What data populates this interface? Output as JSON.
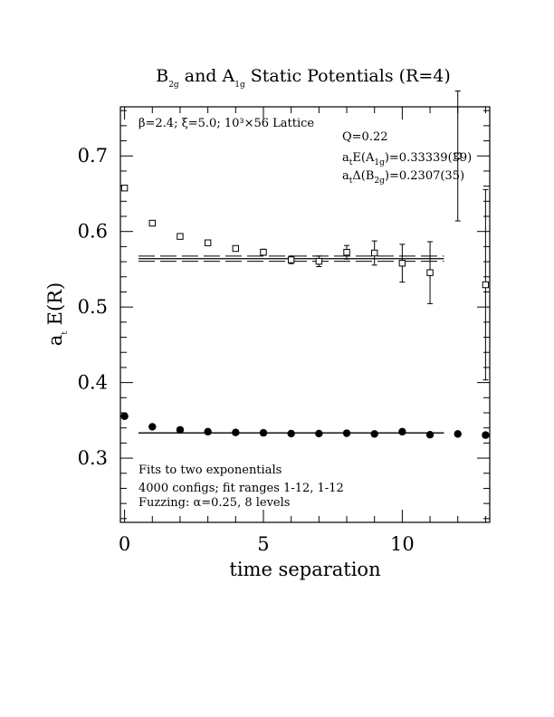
{
  "chart_data": {
    "type": "scatter",
    "title_main": "B",
    "title_sub1": "2g",
    "title_mid": " and A",
    "title_sub2": "1g",
    "title_end": " Static Potentials (R=4)",
    "xlabel": "time separation",
    "ylabel_main": "a",
    "ylabel_sub": "t",
    "ylabel_end": " E(R)",
    "xlim": [
      -0.15,
      13.15
    ],
    "ylim": [
      0.215,
      0.765
    ],
    "xticks": [
      0,
      5,
      10
    ],
    "yticks": [
      0.3,
      0.4,
      0.5,
      0.6,
      0.7
    ],
    "lattice_note": "β=2.4; ξ=5.0; 10³×56 Lattice",
    "q_note": "Q=0.22",
    "a1g_note_pre": "a",
    "a1g_note_sub": "t",
    "a1g_note_mid": "E(A",
    "a1g_note_sub2": "1g",
    "a1g_note_end": ")=0.33339(39)",
    "b2g_note_pre": "a",
    "b2g_note_sub": "t",
    "b2g_note_mid": "Δ(B",
    "b2g_note_sub2": "2g",
    "b2g_note_end": ")=0.2307(35)",
    "fit_note_1": "Fits to two exponentials",
    "fit_note_2": "4000 configs; fit ranges 1-12, 1-12",
    "fit_note_3": "Fuzzing: α=0.25, 8 levels",
    "series": [
      {
        "marker": "filled-circle",
        "points": [
          {
            "x": 0,
            "y": 0.3555,
            "err": 0
          },
          {
            "x": 1,
            "y": 0.3415,
            "err": 0
          },
          {
            "x": 2,
            "y": 0.3375,
            "err": 0
          },
          {
            "x": 3,
            "y": 0.335,
            "err": 0
          },
          {
            "x": 4,
            "y": 0.334,
            "err": 0
          },
          {
            "x": 5,
            "y": 0.3335,
            "err": 0
          },
          {
            "x": 6,
            "y": 0.3325,
            "err": 0
          },
          {
            "x": 7,
            "y": 0.3325,
            "err": 0
          },
          {
            "x": 8,
            "y": 0.333,
            "err": 0
          },
          {
            "x": 9,
            "y": 0.332,
            "err": 0
          },
          {
            "x": 10,
            "y": 0.335,
            "err": 0
          },
          {
            "x": 11,
            "y": 0.331,
            "err": 0
          },
          {
            "x": 12,
            "y": 0.332,
            "err": 0
          },
          {
            "x": 13,
            "y": 0.3305,
            "err": 0
          }
        ],
        "fit": {
          "y": 0.33339,
          "err": 0.00039,
          "x_range": [
            0.5,
            11.5
          ]
        }
      },
      {
        "marker": "open-square",
        "points": [
          {
            "x": 0,
            "y": 0.6575,
            "err": 0.002
          },
          {
            "x": 1,
            "y": 0.611,
            "err": 0.002
          },
          {
            "x": 2,
            "y": 0.5935,
            "err": 0.002
          },
          {
            "x": 3,
            "y": 0.585,
            "err": 0.003
          },
          {
            "x": 4,
            "y": 0.5775,
            "err": 0.003
          },
          {
            "x": 5,
            "y": 0.5725,
            "err": 0.004
          },
          {
            "x": 6,
            "y": 0.5625,
            "err": 0.005
          },
          {
            "x": 7,
            "y": 0.5605,
            "err": 0.007
          },
          {
            "x": 8,
            "y": 0.5725,
            "err": 0.009
          },
          {
            "x": 9,
            "y": 0.5715,
            "err": 0.016
          },
          {
            "x": 10,
            "y": 0.558,
            "err": 0.025
          },
          {
            "x": 11,
            "y": 0.5455,
            "err": 0.041
          },
          {
            "x": 12,
            "y": 0.7,
            "err": 0.086
          },
          {
            "x": 13,
            "y": 0.5295,
            "err": 0.126
          }
        ],
        "fit": {
          "y": 0.564,
          "err": 0.0035,
          "x_range": [
            0.5,
            11.5
          ]
        }
      }
    ]
  }
}
